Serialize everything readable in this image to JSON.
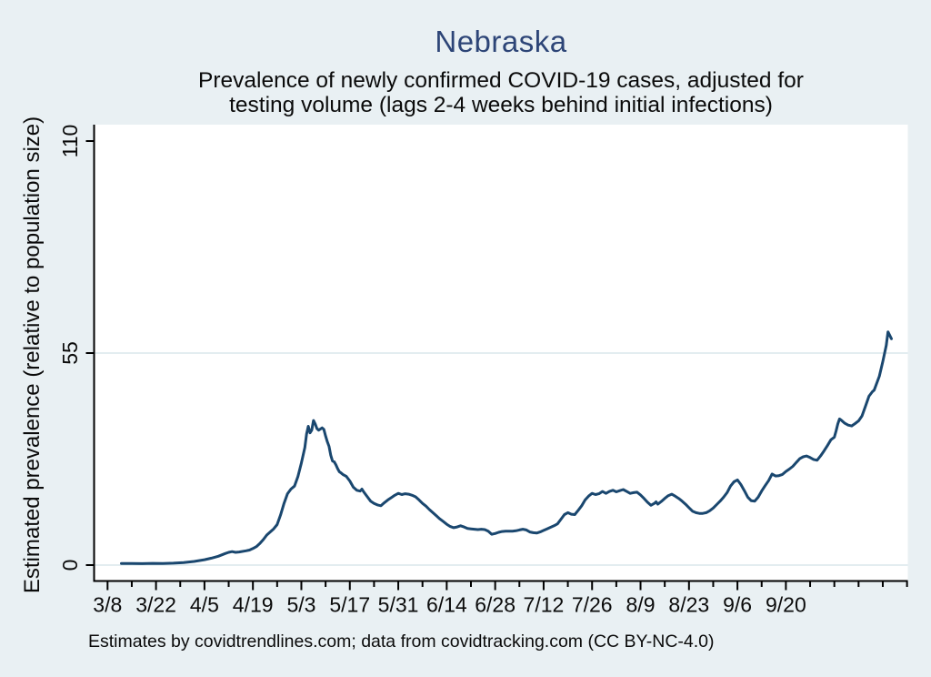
{
  "chart_data": {
    "type": "line",
    "title": "Nebraska",
    "subtitle_line1": "Prevalence of newly confirmed COVID-19 cases, adjusted for",
    "subtitle_line2": "testing volume (lags 2-4 weeks behind initial infections)",
    "ylabel": "Estimated prevalence (relative to population size)",
    "footer": "Estimates by covidtrendlines.com; data from covidtracking.com (CC BY-NC-4.0)",
    "ylim": [
      0,
      115
    ],
    "yticks": [
      0,
      55,
      110
    ],
    "grid_yticks": [
      0,
      55
    ],
    "xticks": [
      {
        "label": "3/8",
        "day": 0
      },
      {
        "label": "3/22",
        "day": 14
      },
      {
        "label": "4/5",
        "day": 28
      },
      {
        "label": "4/19",
        "day": 42
      },
      {
        "label": "5/3",
        "day": 56
      },
      {
        "label": "5/17",
        "day": 70
      },
      {
        "label": "5/31",
        "day": 84
      },
      {
        "label": "6/14",
        "day": 98
      },
      {
        "label": "6/28",
        "day": 112
      },
      {
        "label": "7/12",
        "day": 126
      },
      {
        "label": "7/26",
        "day": 140
      },
      {
        "label": "8/9",
        "day": 154
      },
      {
        "label": "8/23",
        "day": 168
      },
      {
        "label": "9/6",
        "day": 182
      },
      {
        "label": "9/20",
        "day": 196
      }
    ],
    "minor_tick_days": [
      7,
      21,
      35,
      49,
      63,
      77,
      91,
      105,
      119,
      133,
      147,
      161,
      175,
      189,
      203,
      210,
      217,
      224,
      231
    ],
    "x_axis_range_days": [
      0,
      231
    ],
    "legend": "none",
    "grid": "horizontal-major-only",
    "series": [
      {
        "name": "Estimated prevalence (relative to population size)",
        "points": [
          [
            4,
            0.4
          ],
          [
            7,
            0.4
          ],
          [
            10,
            0.38
          ],
          [
            13,
            0.45
          ],
          [
            16,
            0.42
          ],
          [
            19,
            0.5
          ],
          [
            22,
            0.65
          ],
          [
            25,
            0.95
          ],
          [
            28,
            1.4
          ],
          [
            30,
            1.8
          ],
          [
            32,
            2.3
          ],
          [
            34,
            3.0
          ],
          [
            35,
            3.3
          ],
          [
            36,
            3.5
          ],
          [
            37,
            3.3
          ],
          [
            38,
            3.4
          ],
          [
            40,
            3.7
          ],
          [
            41,
            3.9
          ],
          [
            42,
            4.3
          ],
          [
            43,
            4.8
          ],
          [
            44,
            5.6
          ],
          [
            45,
            6.6
          ],
          [
            46,
            7.8
          ],
          [
            47,
            8.6
          ],
          [
            48,
            9.4
          ],
          [
            49,
            10.5
          ],
          [
            50,
            13.0
          ],
          [
            51,
            16.0
          ],
          [
            52,
            18.5
          ],
          [
            53,
            19.7
          ],
          [
            54,
            20.5
          ],
          [
            55,
            23.0
          ],
          [
            56,
            26.5
          ],
          [
            57,
            30.5
          ],
          [
            57.5,
            34.0
          ],
          [
            58,
            36.0
          ],
          [
            58.5,
            34.3
          ],
          [
            59,
            35.0
          ],
          [
            59.5,
            37.5
          ],
          [
            60,
            36.6
          ],
          [
            60.5,
            35.4
          ],
          [
            61,
            35.0
          ],
          [
            61.5,
            35.3
          ],
          [
            62,
            35.6
          ],
          [
            62.5,
            35.2
          ],
          [
            63,
            33.5
          ],
          [
            63.5,
            32.0
          ],
          [
            64,
            30.8
          ],
          [
            64.5,
            28.5
          ],
          [
            65,
            27.0
          ],
          [
            65.5,
            26.8
          ],
          [
            66,
            26.0
          ],
          [
            66.5,
            25.0
          ],
          [
            67,
            24.2
          ],
          [
            67.5,
            23.9
          ],
          [
            68,
            23.5
          ],
          [
            69,
            23.0
          ],
          [
            70,
            21.8
          ],
          [
            71,
            20.2
          ],
          [
            72,
            19.4
          ],
          [
            73,
            19.2
          ],
          [
            73.5,
            19.7
          ],
          [
            74,
            19.0
          ],
          [
            75,
            17.8
          ],
          [
            76,
            16.6
          ],
          [
            77,
            16.0
          ],
          [
            78,
            15.6
          ],
          [
            79,
            15.4
          ],
          [
            80,
            16.2
          ],
          [
            81,
            16.9
          ],
          [
            82,
            17.5
          ],
          [
            83,
            18.1
          ],
          [
            84,
            18.6
          ],
          [
            85,
            18.3
          ],
          [
            86,
            18.5
          ],
          [
            87,
            18.4
          ],
          [
            88,
            18.1
          ],
          [
            89,
            17.7
          ],
          [
            90,
            16.9
          ],
          [
            91,
            16.0
          ],
          [
            92,
            15.3
          ],
          [
            93,
            14.4
          ],
          [
            94,
            13.6
          ],
          [
            95,
            12.8
          ],
          [
            96,
            12.0
          ],
          [
            97,
            11.3
          ],
          [
            98,
            10.6
          ],
          [
            99,
            10.0
          ],
          [
            100,
            9.7
          ],
          [
            101,
            9.9
          ],
          [
            102,
            10.2
          ],
          [
            103,
            9.9
          ],
          [
            104,
            9.5
          ],
          [
            105,
            9.4
          ],
          [
            106,
            9.3
          ],
          [
            107,
            9.2
          ],
          [
            108,
            9.3
          ],
          [
            109,
            9.2
          ],
          [
            110,
            8.8
          ],
          [
            111,
            8.0
          ],
          [
            112,
            8.2
          ],
          [
            113,
            8.5
          ],
          [
            114,
            8.7
          ],
          [
            115,
            8.8
          ],
          [
            116,
            8.8
          ],
          [
            117,
            8.8
          ],
          [
            118,
            8.9
          ],
          [
            119,
            9.1
          ],
          [
            120,
            9.3
          ],
          [
            121,
            9.1
          ],
          [
            122,
            8.6
          ],
          [
            123,
            8.4
          ],
          [
            124,
            8.3
          ],
          [
            125,
            8.6
          ],
          [
            126,
            9.0
          ],
          [
            127,
            9.4
          ],
          [
            128,
            9.8
          ],
          [
            129,
            10.2
          ],
          [
            130,
            10.7
          ],
          [
            131,
            11.9
          ],
          [
            132,
            13.1
          ],
          [
            133,
            13.6
          ],
          [
            134,
            13.2
          ],
          [
            135,
            13.1
          ],
          [
            136,
            14.2
          ],
          [
            137,
            15.4
          ],
          [
            138,
            16.9
          ],
          [
            139,
            17.9
          ],
          [
            140,
            18.6
          ],
          [
            141,
            18.3
          ],
          [
            142,
            18.5
          ],
          [
            143,
            19.1
          ],
          [
            144,
            18.6
          ],
          [
            145,
            19.1
          ],
          [
            146,
            19.4
          ],
          [
            147,
            19.0
          ],
          [
            148,
            19.3
          ],
          [
            149,
            19.6
          ],
          [
            150,
            19.1
          ],
          [
            151,
            18.6
          ],
          [
            152,
            18.8
          ],
          [
            153,
            18.9
          ],
          [
            154,
            18.2
          ],
          [
            155,
            17.3
          ],
          [
            156,
            16.3
          ],
          [
            157,
            15.5
          ],
          [
            158,
            16.0
          ],
          [
            158.5,
            16.4
          ],
          [
            159,
            15.8
          ],
          [
            160,
            16.5
          ],
          [
            161,
            17.3
          ],
          [
            162,
            18.0
          ],
          [
            163,
            18.4
          ],
          [
            164,
            17.9
          ],
          [
            165,
            17.3
          ],
          [
            166,
            16.6
          ],
          [
            167,
            15.8
          ],
          [
            168,
            14.9
          ],
          [
            169,
            14.0
          ],
          [
            170,
            13.6
          ],
          [
            171,
            13.4
          ],
          [
            172,
            13.4
          ],
          [
            173,
            13.6
          ],
          [
            174,
            14.1
          ],
          [
            175,
            14.8
          ],
          [
            176,
            15.7
          ],
          [
            177,
            16.6
          ],
          [
            178,
            17.6
          ],
          [
            179,
            18.8
          ],
          [
            180,
            20.5
          ],
          [
            181,
            21.6
          ],
          [
            182,
            22.1
          ],
          [
            183,
            20.9
          ],
          [
            184,
            19.3
          ],
          [
            185,
            17.6
          ],
          [
            186,
            16.7
          ],
          [
            187,
            16.6
          ],
          [
            188,
            17.6
          ],
          [
            189,
            19.2
          ],
          [
            190,
            20.6
          ],
          [
            191,
            21.9
          ],
          [
            192,
            23.6
          ],
          [
            193,
            23.1
          ],
          [
            194,
            23.2
          ],
          [
            195,
            23.5
          ],
          [
            196,
            24.3
          ],
          [
            197,
            24.9
          ],
          [
            198,
            25.6
          ],
          [
            199,
            26.6
          ],
          [
            200,
            27.6
          ],
          [
            201,
            28.1
          ],
          [
            202,
            28.3
          ],
          [
            203,
            27.9
          ],
          [
            204,
            27.4
          ],
          [
            205,
            27.2
          ],
          [
            206,
            28.3
          ],
          [
            207,
            29.6
          ],
          [
            208,
            31.0
          ],
          [
            209,
            32.5
          ],
          [
            210,
            33.2
          ],
          [
            210.5,
            34.8
          ],
          [
            211,
            36.6
          ],
          [
            211.5,
            37.9
          ],
          [
            212,
            37.6
          ],
          [
            213,
            36.8
          ],
          [
            214,
            36.3
          ],
          [
            215,
            36.1
          ],
          [
            216,
            36.7
          ],
          [
            217,
            37.4
          ],
          [
            218,
            38.7
          ],
          [
            219,
            41.2
          ],
          [
            220,
            43.8
          ],
          [
            221,
            45.0
          ],
          [
            221.5,
            45.4
          ],
          [
            222,
            46.6
          ],
          [
            223,
            49.0
          ],
          [
            224,
            52.8
          ],
          [
            225,
            57.0
          ],
          [
            225.5,
            60.5
          ],
          [
            226.5,
            58.7
          ]
        ]
      }
    ],
    "colors": {
      "line": "#1a476f",
      "grid": "#e3edf0",
      "axis": "#000000",
      "plot_bg": "#ffffff",
      "page_bg": "#e9f0f3",
      "title": "#2d4577",
      "text": "#0b0b0b"
    }
  }
}
